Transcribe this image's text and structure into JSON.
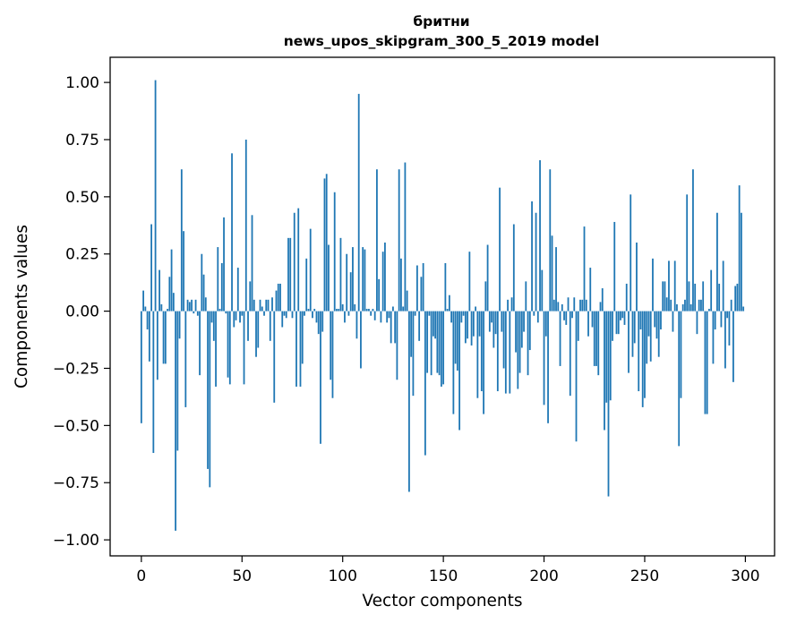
{
  "chart_data": {
    "type": "bar",
    "title": "бритни",
    "subtitle": "news_upos_skipgram_300_5_2019 model",
    "xlabel": "Vector components",
    "ylabel": "Components values",
    "xlim": [
      -15.5,
      314.5
    ],
    "ylim": [
      -1.07,
      1.11
    ],
    "xticks": [
      0,
      50,
      100,
      150,
      200,
      250,
      300
    ],
    "xtick_labels": [
      "0",
      "50",
      "100",
      "150",
      "200",
      "250",
      "300"
    ],
    "yticks": [
      1.0,
      0.75,
      0.5,
      0.25,
      0.0,
      -0.25,
      -0.5,
      -0.75,
      -1.0
    ],
    "ytick_labels": [
      "1.00",
      "0.75",
      "0.50",
      "0.25",
      "0.00",
      "−0.25",
      "−0.50",
      "−0.75",
      "−1.00"
    ],
    "bar_color": "#1f77b4",
    "grid": false,
    "x": [
      0,
      1,
      2,
      3,
      4,
      5,
      6,
      7,
      8,
      9,
      10,
      11,
      12,
      13,
      14,
      15,
      16,
      17,
      18,
      19,
      20,
      21,
      22,
      23,
      24,
      25,
      26,
      27,
      28,
      29,
      30,
      31,
      32,
      33,
      34,
      35,
      36,
      37,
      38,
      39,
      40,
      41,
      42,
      43,
      44,
      45,
      46,
      47,
      48,
      49,
      50,
      51,
      52,
      53,
      54,
      55,
      56,
      57,
      58,
      59,
      60,
      61,
      62,
      63,
      64,
      65,
      66,
      67,
      68,
      69,
      70,
      71,
      72,
      73,
      74,
      75,
      76,
      77,
      78,
      79,
      80,
      81,
      82,
      83,
      84,
      85,
      86,
      87,
      88,
      89,
      90,
      91,
      92,
      93,
      94,
      95,
      96,
      97,
      98,
      99,
      100,
      101,
      102,
      103,
      104,
      105,
      106,
      107,
      108,
      109,
      110,
      111,
      112,
      113,
      114,
      115,
      116,
      117,
      118,
      119,
      120,
      121,
      122,
      123,
      124,
      125,
      126,
      127,
      128,
      129,
      130,
      131,
      132,
      133,
      134,
      135,
      136,
      137,
      138,
      139,
      140,
      141,
      142,
      143,
      144,
      145,
      146,
      147,
      148,
      149,
      150,
      151,
      152,
      153,
      154,
      155,
      156,
      157,
      158,
      159,
      160,
      161,
      162,
      163,
      164,
      165,
      166,
      167,
      168,
      169,
      170,
      171,
      172,
      173,
      174,
      175,
      176,
      177,
      178,
      179,
      180,
      181,
      182,
      183,
      184,
      185,
      186,
      187,
      188,
      189,
      190,
      191,
      192,
      193,
      194,
      195,
      196,
      197,
      198,
      199,
      200,
      201,
      202,
      203,
      204,
      205,
      206,
      207,
      208,
      209,
      210,
      211,
      212,
      213,
      214,
      215,
      216,
      217,
      218,
      219,
      220,
      221,
      222,
      223,
      224,
      225,
      226,
      227,
      228,
      229,
      230,
      231,
      232,
      233,
      234,
      235,
      236,
      237,
      238,
      239,
      240,
      241,
      242,
      243,
      244,
      245,
      246,
      247,
      248,
      249,
      250,
      251,
      252,
      253,
      254,
      255,
      256,
      257,
      258,
      259,
      260,
      261,
      262,
      263,
      264,
      265,
      266,
      267,
      268,
      269,
      270,
      271,
      272,
      273,
      274,
      275,
      276,
      277,
      278,
      279,
      280,
      281,
      282,
      283,
      284,
      285,
      286,
      287,
      288,
      289,
      290,
      291,
      292,
      293,
      294,
      295,
      296,
      297,
      298,
      299
    ],
    "values": [
      -0.49,
      0.09,
      0.02,
      -0.08,
      -0.22,
      0.38,
      -0.62,
      1.01,
      -0.3,
      0.18,
      0.03,
      -0.23,
      -0.23,
      0.01,
      0.15,
      0.27,
      0.08,
      -0.96,
      -0.61,
      -0.12,
      0.62,
      0.35,
      -0.42,
      0.05,
      0.04,
      0.05,
      -0.01,
      0.05,
      -0.02,
      -0.28,
      0.25,
      0.16,
      0.06,
      -0.69,
      -0.77,
      -0.05,
      -0.13,
      -0.33,
      0.28,
      0.01,
      0.21,
      0.41,
      -0.01,
      -0.29,
      -0.32,
      0.69,
      -0.07,
      -0.04,
      0.19,
      -0.05,
      -0.02,
      -0.32,
      0.75,
      -0.13,
      0.13,
      0.42,
      0.05,
      -0.2,
      -0.16,
      0.05,
      0.02,
      -0.02,
      0.05,
      0.05,
      -0.13,
      0.06,
      -0.4,
      0.09,
      0.12,
      0.12,
      -0.07,
      -0.02,
      -0.03,
      0.32,
      0.32,
      -0.03,
      0.43,
      -0.33,
      0.45,
      -0.33,
      -0.23,
      -0.02,
      0.23,
      0.01,
      0.36,
      -0.03,
      0.01,
      -0.05,
      -0.1,
      -0.58,
      -0.09,
      0.58,
      0.6,
      0.29,
      -0.3,
      -0.38,
      0.52,
      0.01,
      0.01,
      0.32,
      0.03,
      -0.05,
      0.25,
      -0.02,
      0.17,
      0.28,
      0.03,
      -0.12,
      0.95,
      -0.25,
      0.28,
      0.27,
      0.01,
      0.01,
      -0.02,
      0.01,
      -0.04,
      0.62,
      0.14,
      -0.05,
      0.26,
      0.3,
      -0.05,
      -0.03,
      -0.14,
      0.02,
      -0.14,
      -0.3,
      0.62,
      0.23,
      0.02,
      0.65,
      0.09,
      -0.79,
      -0.2,
      -0.37,
      -0.02,
      0.2,
      -0.13,
      0.15,
      0.21,
      -0.63,
      -0.27,
      -0.02,
      -0.28,
      -0.11,
      -0.12,
      -0.27,
      -0.28,
      -0.33,
      -0.32,
      0.21,
      0.01,
      0.07,
      -0.05,
      -0.45,
      -0.23,
      -0.26,
      -0.52,
      -0.05,
      -0.02,
      -0.14,
      -0.12,
      0.26,
      -0.15,
      -0.11,
      0.02,
      -0.38,
      -0.11,
      -0.35,
      -0.45,
      0.13,
      0.29,
      -0.09,
      -0.05,
      -0.16,
      -0.1,
      -0.35,
      0.54,
      -0.09,
      -0.25,
      -0.36,
      0.05,
      -0.36,
      0.06,
      0.38,
      -0.18,
      -0.34,
      -0.27,
      -0.16,
      -0.09,
      0.13,
      -0.28,
      -0.17,
      0.48,
      -0.02,
      0.43,
      -0.05,
      0.66,
      0.18,
      -0.41,
      -0.11,
      -0.49,
      0.62,
      0.33,
      0.05,
      0.28,
      0.04,
      -0.24,
      0.03,
      -0.04,
      -0.06,
      0.06,
      -0.37,
      -0.03,
      0.06,
      -0.57,
      -0.13,
      0.05,
      0.05,
      0.37,
      0.05,
      -0.11,
      0.19,
      -0.07,
      -0.24,
      -0.24,
      -0.28,
      0.04,
      0.1,
      -0.52,
      -0.4,
      -0.81,
      -0.39,
      -0.13,
      0.39,
      -0.1,
      -0.1,
      -0.04,
      -0.03,
      -0.06,
      0.12,
      -0.27,
      0.51,
      -0.2,
      -0.14,
      0.3,
      -0.35,
      -0.08,
      -0.42,
      -0.38,
      -0.23,
      -0.11,
      -0.22,
      0.23,
      -0.07,
      -0.12,
      -0.2,
      -0.08,
      0.13,
      0.13,
      0.06,
      0.22,
      0.05,
      -0.09,
      0.22,
      0.03,
      -0.59,
      -0.38,
      0.03,
      0.05,
      0.51,
      0.13,
      0.03,
      0.62,
      0.12,
      -0.1,
      0.05,
      0.05,
      0.13,
      -0.45,
      -0.45,
      0.01,
      0.18,
      -0.23,
      -0.08,
      0.43,
      0.12,
      -0.07,
      0.22,
      -0.25,
      -0.03,
      -0.15,
      0.05,
      -0.31,
      0.11,
      0.12,
      0.55,
      0.43,
      0.02
    ]
  }
}
